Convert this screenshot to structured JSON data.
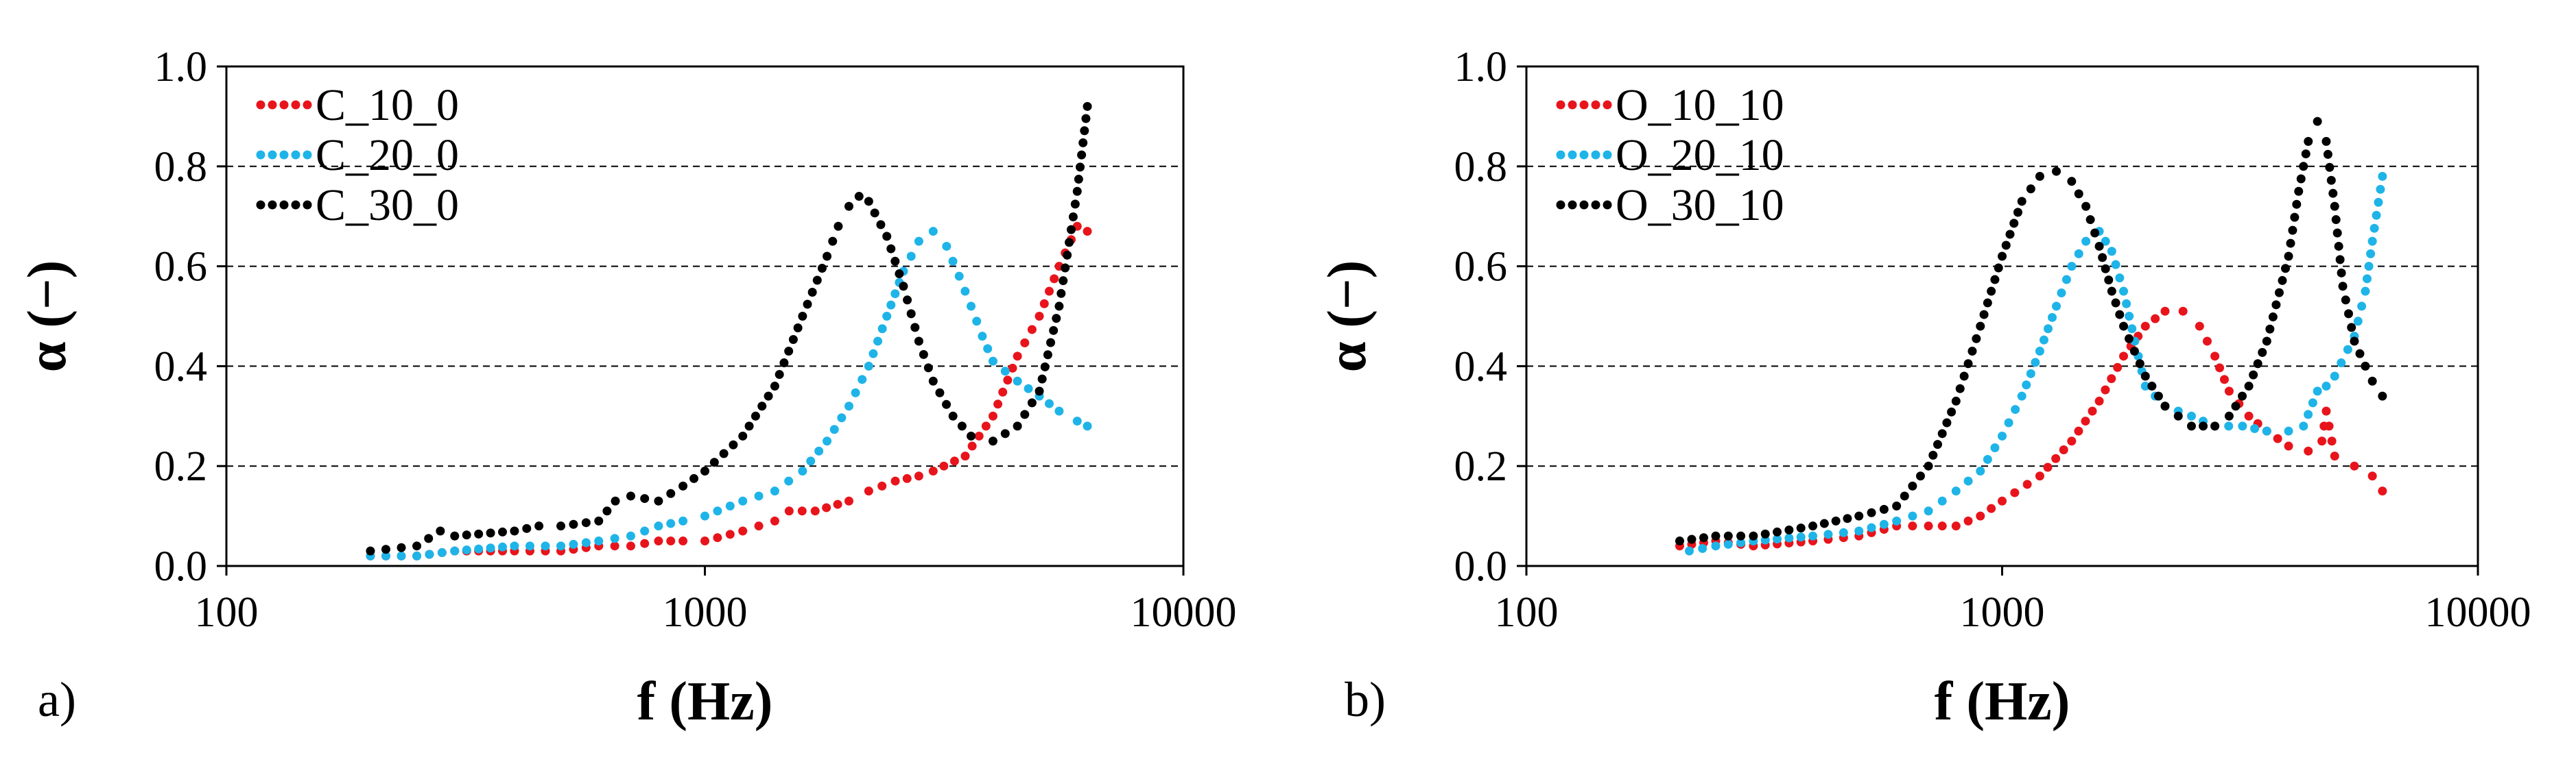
{
  "chart_data": [
    {
      "type": "scatter",
      "panel_label": "a)",
      "xlabel": "f (Hz)",
      "ylabel": "α (−)",
      "xscale": "log",
      "xlim": [
        100,
        10000
      ],
      "ylim": [
        0,
        1.0
      ],
      "xticks": [
        "100",
        "1000",
        "10000"
      ],
      "yticks": [
        "0.0",
        "0.2",
        "0.4",
        "0.6",
        "0.8",
        "1.0"
      ],
      "grid": "horizontal dashed",
      "legend_position": "top-left",
      "series": [
        {
          "name": "C_10_0",
          "color": "#e8141b",
          "x": [
            200,
            250,
            300,
            400,
            500,
            600,
            700,
            800,
            900,
            1000,
            1200,
            1400,
            1500,
            1700,
            2000,
            2200,
            2500,
            2800,
            3000,
            3500,
            4000,
            4500,
            5000,
            5500,
            6000,
            6300
          ],
          "y": [
            0.02,
            0.02,
            0.03,
            0.03,
            0.03,
            0.04,
            0.04,
            0.05,
            0.05,
            0.05,
            0.07,
            0.09,
            0.11,
            0.11,
            0.13,
            0.15,
            0.17,
            0.18,
            0.19,
            0.22,
            0.3,
            0.42,
            0.5,
            0.6,
            0.68,
            0.67
          ]
        },
        {
          "name": "C_20_0",
          "color": "#1eb4e8",
          "x": [
            200,
            250,
            300,
            400,
            500,
            600,
            700,
            800,
            900,
            1000,
            1200,
            1400,
            1600,
            1800,
            2000,
            2200,
            2400,
            2600,
            2800,
            3000,
            3200,
            3400,
            3600,
            3800,
            4000,
            4500,
            5000,
            5500,
            6000,
            6300
          ],
          "y": [
            0.02,
            0.02,
            0.03,
            0.04,
            0.04,
            0.05,
            0.06,
            0.08,
            0.09,
            0.1,
            0.13,
            0.15,
            0.19,
            0.25,
            0.32,
            0.4,
            0.5,
            0.59,
            0.65,
            0.67,
            0.64,
            0.58,
            0.52,
            0.46,
            0.41,
            0.37,
            0.34,
            0.31,
            0.29,
            0.28
          ]
        },
        {
          "name": "C_30_0",
          "color": "#000000",
          "x": [
            200,
            250,
            280,
            300,
            400,
            450,
            500,
            600,
            650,
            700,
            800,
            900,
            1000,
            1200,
            1400,
            1600,
            1800,
            1900,
            2000,
            2100,
            2200,
            2400,
            2600,
            2800,
            3000,
            3300,
            3600,
            4000,
            4500,
            5000,
            5500,
            6000,
            6300
          ],
          "y": [
            0.03,
            0.04,
            0.07,
            0.06,
            0.07,
            0.08,
            0.08,
            0.09,
            0.13,
            0.14,
            0.13,
            0.16,
            0.19,
            0.26,
            0.36,
            0.5,
            0.62,
            0.68,
            0.72,
            0.74,
            0.73,
            0.66,
            0.56,
            0.45,
            0.37,
            0.3,
            0.26,
            0.25,
            0.28,
            0.35,
            0.52,
            0.75,
            0.92
          ]
        }
      ]
    },
    {
      "type": "scatter",
      "panel_label": "b)",
      "xlabel": "f (Hz)",
      "ylabel": "α (−)",
      "xscale": "log",
      "xlim": [
        100,
        10000
      ],
      "ylim": [
        0,
        1.0
      ],
      "xticks": [
        "100",
        "1000",
        "10000"
      ],
      "yticks": [
        "0.0",
        "0.2",
        "0.4",
        "0.6",
        "0.8",
        "1.0"
      ],
      "grid": "horizontal dashed",
      "legend_position": "top-left",
      "series": [
        {
          "name": "O_10_10",
          "color": "#e8141b",
          "x": [
            210,
            250,
            300,
            400,
            500,
            600,
            700,
            800,
            900,
            1000,
            1200,
            1400,
            1600,
            1800,
            2000,
            2200,
            2400,
            2600,
            2800,
            3000,
            3300,
            3600,
            4000,
            4400,
            4700,
            4800,
            5000,
            5500,
            6000,
            6300
          ],
          "y": [
            0.04,
            0.05,
            0.04,
            0.05,
            0.06,
            0.08,
            0.08,
            0.08,
            0.1,
            0.13,
            0.18,
            0.25,
            0.33,
            0.42,
            0.48,
            0.51,
            0.51,
            0.48,
            0.42,
            0.35,
            0.3,
            0.27,
            0.24,
            0.23,
            0.25,
            0.31,
            0.22,
            0.2,
            0.18,
            0.15
          ]
        },
        {
          "name": "O_20_10",
          "color": "#1eb4e8",
          "x": [
            220,
            250,
            300,
            400,
            500,
            600,
            700,
            800,
            900,
            1000,
            1100,
            1200,
            1300,
            1400,
            1500,
            1600,
            1700,
            1800,
            1900,
            2000,
            2200,
            2500,
            2800,
            3200,
            3600,
            4000,
            4300,
            4600,
            4800,
            5000,
            5500,
            5800,
            6000,
            6300
          ],
          "y": [
            0.03,
            0.04,
            0.05,
            0.06,
            0.07,
            0.09,
            0.11,
            0.15,
            0.19,
            0.26,
            0.34,
            0.43,
            0.52,
            0.6,
            0.65,
            0.67,
            0.63,
            0.55,
            0.45,
            0.36,
            0.32,
            0.3,
            0.28,
            0.28,
            0.27,
            0.27,
            0.28,
            0.35,
            0.36,
            0.38,
            0.46,
            0.55,
            0.65,
            0.78
          ]
        },
        {
          "name": "O_30_10",
          "color": "#000000",
          "x": [
            210,
            250,
            300,
            400,
            500,
            600,
            700,
            800,
            900,
            1000,
            1100,
            1200,
            1300,
            1400,
            1500,
            1600,
            1700,
            1800,
            2000,
            2200,
            2500,
            2800,
            3000,
            3300,
            3600,
            4000,
            4200,
            4400,
            4600,
            4800,
            5000,
            5200,
            5500,
            5800,
            6000,
            6300
          ],
          "y": [
            0.05,
            0.06,
            0.06,
            0.08,
            0.1,
            0.12,
            0.2,
            0.33,
            0.48,
            0.62,
            0.73,
            0.78,
            0.79,
            0.77,
            0.72,
            0.64,
            0.55,
            0.48,
            0.38,
            0.32,
            0.28,
            0.28,
            0.3,
            0.36,
            0.45,
            0.62,
            0.75,
            0.85,
            0.89,
            0.85,
            0.72,
            0.56,
            0.45,
            0.4,
            0.37,
            0.34
          ]
        }
      ]
    }
  ]
}
